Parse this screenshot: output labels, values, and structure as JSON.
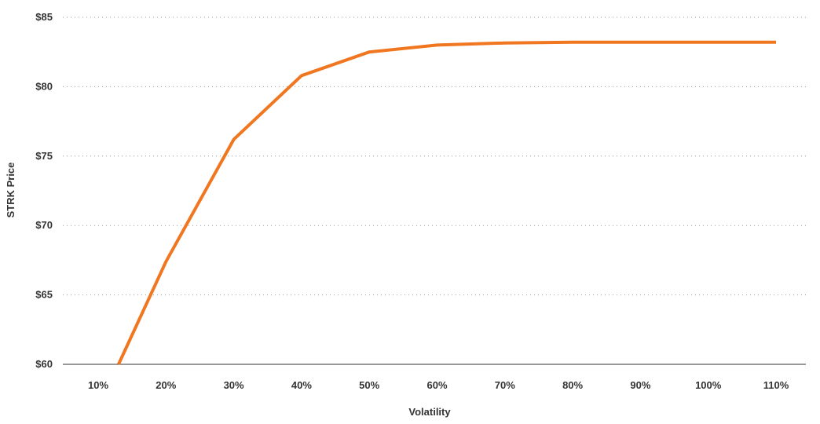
{
  "chart_data": {
    "type": "line",
    "title": "",
    "xlabel": "Volatility",
    "ylabel": "STRK Price",
    "categories": [
      "10%",
      "20%",
      "30%",
      "40%",
      "50%",
      "60%",
      "70%",
      "80%",
      "90%",
      "100%",
      "110%"
    ],
    "x": [
      0.13,
      0.2,
      0.3,
      0.4,
      0.5,
      0.6,
      0.7,
      0.8,
      0.9,
      1.0,
      1.1
    ],
    "ylim": [
      60,
      85
    ],
    "yticks": [
      "$60",
      "$65",
      "$70",
      "$75",
      "$80",
      "$85"
    ],
    "ytick_values": [
      60,
      65,
      70,
      75,
      80,
      85
    ],
    "grid": true,
    "legend": "none",
    "series": [
      {
        "values": [
          60.0,
          67.4,
          76.2,
          80.8,
          82.5,
          83.0,
          83.15,
          83.2,
          83.2,
          83.2,
          83.2
        ],
        "color": "#f07620"
      }
    ]
  }
}
